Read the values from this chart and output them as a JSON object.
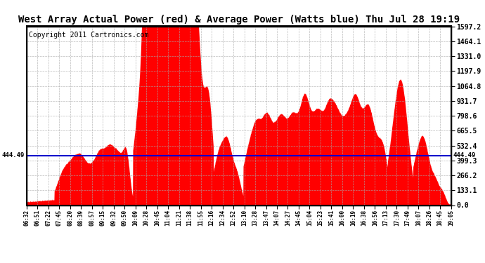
{
  "title": "West Array Actual Power (red) & Average Power (Watts blue) Thu Jul 28 19:19",
  "copyright": "Copyright 2011 Cartronics.com",
  "avg_power": 444.49,
  "ymax": 1597.2,
  "yticks": [
    0.0,
    133.1,
    266.2,
    399.3,
    532.4,
    665.5,
    798.6,
    931.7,
    1064.8,
    1197.9,
    1331.0,
    1464.1,
    1597.2
  ],
  "xtick_labels": [
    "06:32",
    "06:51",
    "07:22",
    "07:45",
    "08:20",
    "08:39",
    "08:57",
    "09:15",
    "09:32",
    "09:50",
    "10:09",
    "10:28",
    "10:45",
    "11:04",
    "11:21",
    "11:38",
    "11:55",
    "12:16",
    "12:34",
    "12:52",
    "13:10",
    "13:28",
    "13:47",
    "14:07",
    "14:27",
    "14:45",
    "15:04",
    "15:23",
    "15:41",
    "16:00",
    "16:19",
    "16:38",
    "16:56",
    "17:13",
    "17:30",
    "17:49",
    "18:07",
    "18:26",
    "18:45",
    "19:05"
  ],
  "fill_color": "#FF0000",
  "line_color": "#0000CC",
  "bg_color": "#FFFFFF",
  "grid_color": "#AAAAAA",
  "title_fontsize": 10,
  "copyright_fontsize": 7,
  "ytick_label_fontsize": 7,
  "xtick_label_fontsize": 5.5,
  "avg_label_fontsize": 6.5
}
